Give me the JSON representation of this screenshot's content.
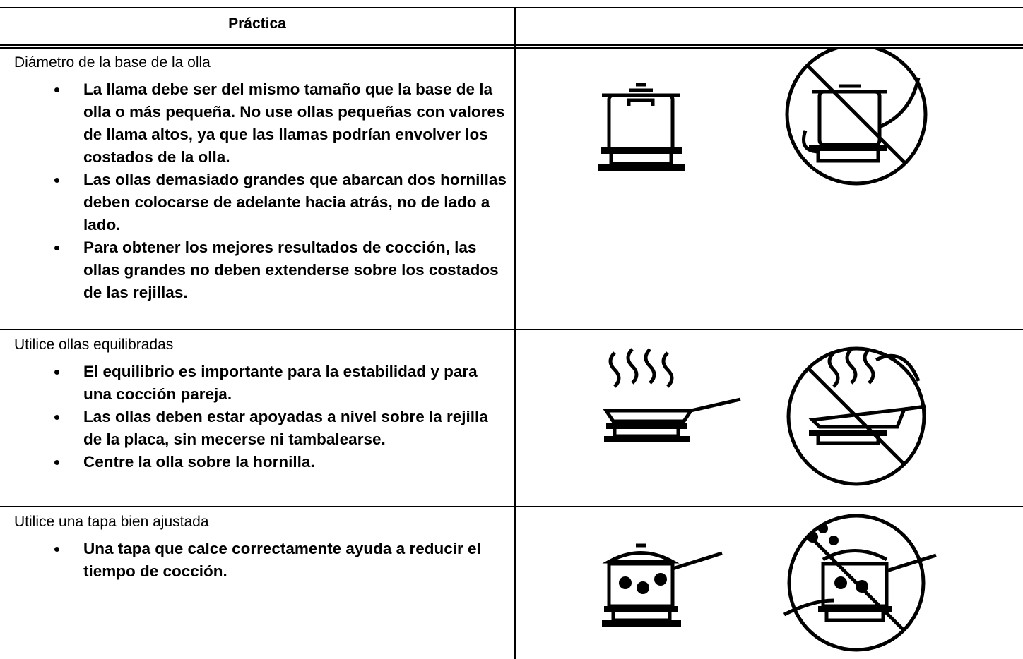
{
  "header": {
    "col1": "Práctica"
  },
  "rows": [
    {
      "heading": "Diámetro de la base de la olla",
      "bullets": [
        "La llama debe ser del mismo tamaño que la base de la olla o más pequeña. No use ollas pequeñas con valores de llama altos, ya que las llamas podrían envolver los costados de la olla.",
        "Las ollas demasiado grandes que abarcan dos hornillas deben colocarse de adelante hacia atrás, no de lado a lado.",
        "Para obtener los mejores resultados de cocción, las ollas grandes no deben extenderse sobre los costados de las rejillas."
      ]
    },
    {
      "heading": "Utilice ollas equilibradas",
      "bullets": [
        "El equilibrio es importante para la estabilidad y para una cocción pareja.",
        "Las ollas deben estar apoyadas a nivel sobre la rejilla de la placa, sin mecerse ni tambalearse.",
        "Centre la olla sobre la hornilla."
      ]
    },
    {
      "heading": "Utilice una tapa bien ajustada",
      "bullets": [
        "Una tapa que calce correctamente ayuda a reducir el tiempo de cocción."
      ]
    }
  ]
}
